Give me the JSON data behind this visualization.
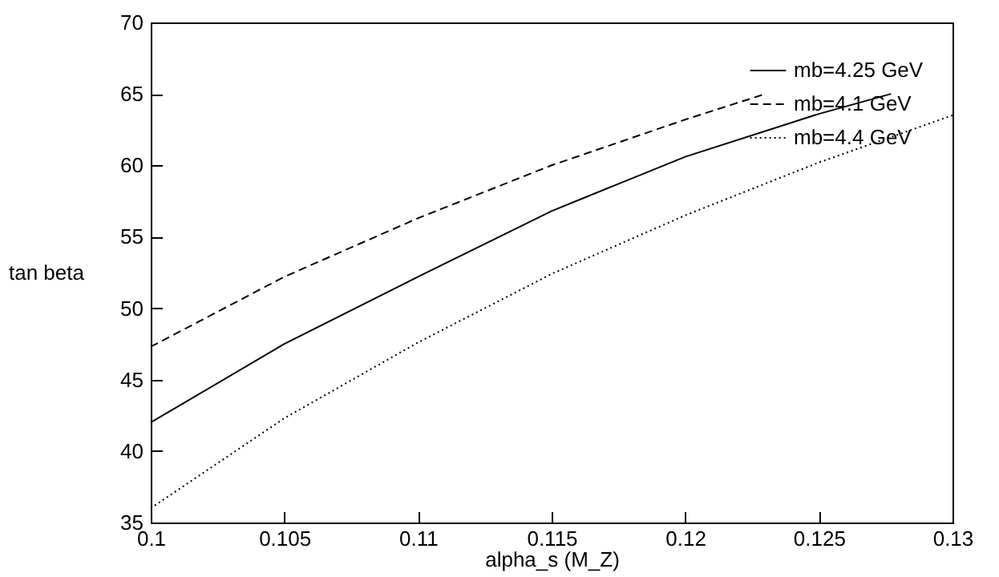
{
  "chart_data": {
    "type": "line",
    "xlabel": "alpha_s (M_Z)",
    "ylabel": "tan beta",
    "xlim": [
      0.1,
      0.13
    ],
    "xticks": [
      0.1,
      0.105,
      0.11,
      0.115,
      0.12,
      0.125,
      0.13
    ],
    "ylim": [
      35,
      70
    ],
    "yticks": [
      35,
      40,
      45,
      50,
      55,
      60,
      65,
      70
    ],
    "legend": "top right",
    "grid": false,
    "marker": "none",
    "series": [
      {
        "name": "mb=4.25 GeV",
        "color": "#000000",
        "line_style": "solid",
        "x": [
          0.1,
          0.105,
          0.11,
          0.115,
          0.12,
          0.125,
          0.1277
        ],
        "values": [
          42,
          47.5,
          52.2,
          56.8,
          60.6,
          63.6,
          65
        ]
      },
      {
        "name": "mb=4.1 GeV",
        "color": "#000000",
        "line_style": "dashed",
        "x": [
          0.1,
          0.105,
          0.11,
          0.115,
          0.12,
          0.123
        ],
        "values": [
          47.3,
          52.2,
          56.3,
          60,
          63.2,
          65
        ]
      },
      {
        "name": "mb=4.4 GeV",
        "color": "#000000",
        "line_style": "dotted",
        "x": [
          0.1,
          0.105,
          0.11,
          0.115,
          0.12,
          0.125,
          0.13
        ],
        "values": [
          36,
          42.3,
          47.6,
          52.4,
          56.5,
          60.2,
          63.5
        ]
      }
    ]
  }
}
